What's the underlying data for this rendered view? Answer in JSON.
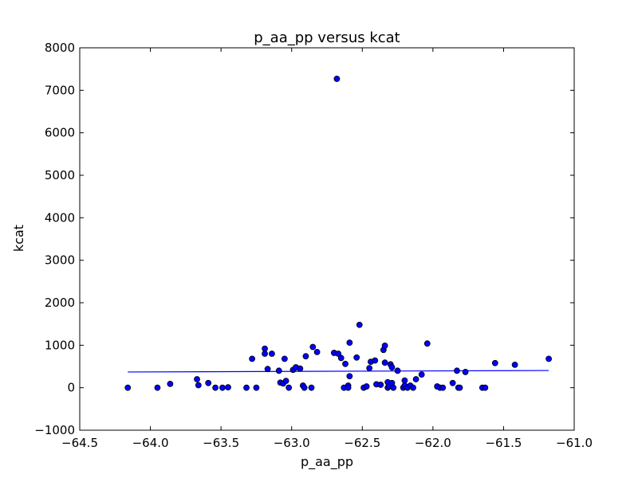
{
  "chart_data": {
    "type": "scatter",
    "title": "p_aa_pp versus kcat",
    "xlabel": "p_aa_pp",
    "ylabel": "kcat",
    "xlim": [
      -64.5,
      -61.0
    ],
    "ylim": [
      -1000,
      8000
    ],
    "xticks": [
      -64.5,
      -64.0,
      -63.5,
      -63.0,
      -62.5,
      -62.0,
      -61.5,
      -61.0
    ],
    "yticks": [
      -1000,
      0,
      1000,
      2000,
      3000,
      4000,
      5000,
      6000,
      7000,
      8000
    ],
    "xtick_labels": [
      "−64.5",
      "−64.0",
      "−63.5",
      "−63.0",
      "−62.5",
      "−62.0",
      "−61.5",
      "−61.0"
    ],
    "ytick_labels": [
      "−1000",
      "0",
      "1000",
      "2000",
      "3000",
      "4000",
      "5000",
      "6000",
      "7000",
      "8000"
    ],
    "grid": false,
    "point_color": "#0000ff",
    "line_color": "#0000ff",
    "points": [
      [
        -64.16,
        0
      ],
      [
        -63.95,
        0
      ],
      [
        -63.86,
        90
      ],
      [
        -63.67,
        200
      ],
      [
        -63.66,
        60
      ],
      [
        -63.59,
        110
      ],
      [
        -63.54,
        0
      ],
      [
        -63.49,
        0
      ],
      [
        -63.45,
        10
      ],
      [
        -63.32,
        0
      ],
      [
        -63.28,
        680
      ],
      [
        -63.25,
        0
      ],
      [
        -63.19,
        920
      ],
      [
        -63.19,
        800
      ],
      [
        -63.17,
        440
      ],
      [
        -63.14,
        800
      ],
      [
        -63.09,
        400
      ],
      [
        -63.08,
        120
      ],
      [
        -63.06,
        100
      ],
      [
        -63.05,
        680
      ],
      [
        -63.04,
        160
      ],
      [
        -63.02,
        0
      ],
      [
        -62.99,
        420
      ],
      [
        -62.97,
        480
      ],
      [
        -62.94,
        450
      ],
      [
        -62.92,
        50
      ],
      [
        -62.91,
        0
      ],
      [
        -62.9,
        740
      ],
      [
        -62.86,
        0
      ],
      [
        -62.85,
        960
      ],
      [
        -62.82,
        840
      ],
      [
        -62.7,
        820
      ],
      [
        -62.68,
        7270
      ],
      [
        -62.67,
        800
      ],
      [
        -62.65,
        700
      ],
      [
        -62.63,
        0
      ],
      [
        -62.62,
        560
      ],
      [
        -62.6,
        50
      ],
      [
        -62.6,
        0
      ],
      [
        -62.59,
        270
      ],
      [
        -62.59,
        1060
      ],
      [
        -62.54,
        710
      ],
      [
        -62.52,
        1480
      ],
      [
        -62.49,
        0
      ],
      [
        -62.47,
        30
      ],
      [
        -62.45,
        460
      ],
      [
        -62.44,
        610
      ],
      [
        -62.41,
        640
      ],
      [
        -62.4,
        80
      ],
      [
        -62.37,
        70
      ],
      [
        -62.35,
        890
      ],
      [
        -62.34,
        990
      ],
      [
        -62.34,
        590
      ],
      [
        -62.32,
        0
      ],
      [
        -62.32,
        130
      ],
      [
        -62.31,
        40
      ],
      [
        -62.3,
        550
      ],
      [
        -62.29,
        480
      ],
      [
        -62.29,
        110
      ],
      [
        -62.28,
        0
      ],
      [
        -62.25,
        400
      ],
      [
        -62.21,
        0
      ],
      [
        -62.2,
        50
      ],
      [
        -62.2,
        170
      ],
      [
        -62.18,
        0
      ],
      [
        -62.16,
        50
      ],
      [
        -62.14,
        0
      ],
      [
        -62.12,
        200
      ],
      [
        -62.08,
        310
      ],
      [
        -62.04,
        1040
      ],
      [
        -61.97,
        30
      ],
      [
        -61.95,
        0
      ],
      [
        -61.93,
        0
      ],
      [
        -61.86,
        110
      ],
      [
        -61.83,
        400
      ],
      [
        -61.82,
        0
      ],
      [
        -61.81,
        0
      ],
      [
        -61.77,
        370
      ],
      [
        -61.65,
        0
      ],
      [
        -61.63,
        0
      ],
      [
        -61.56,
        580
      ],
      [
        -61.42,
        540
      ],
      [
        -61.18,
        680
      ]
    ],
    "fit_line": {
      "x": [
        -64.16,
        -61.18
      ],
      "y": [
        370,
        405
      ]
    }
  }
}
